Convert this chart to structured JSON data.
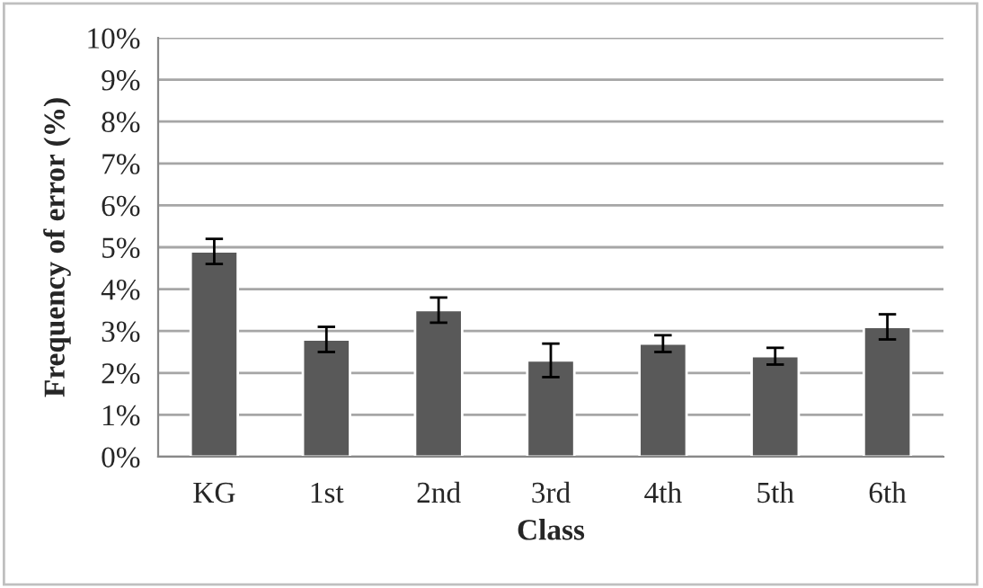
{
  "chart_data": {
    "type": "bar",
    "xlabel": "Class",
    "ylabel": "Frequency of error (%)",
    "categories": [
      "KG",
      "1st",
      "2nd",
      "3rd",
      "4th",
      "5th",
      "6th"
    ],
    "values": [
      4.9,
      2.8,
      3.5,
      2.3,
      2.7,
      2.4,
      3.1
    ],
    "errors": [
      0.3,
      0.3,
      0.3,
      0.4,
      0.2,
      0.2,
      0.3
    ],
    "color": "#595959",
    "ylim": [
      0,
      10
    ],
    "yticks": [
      {
        "value": 0,
        "label": "0%"
      },
      {
        "value": 1,
        "label": "1%"
      },
      {
        "value": 2,
        "label": "2%"
      },
      {
        "value": 3,
        "label": "3%"
      },
      {
        "value": 4,
        "label": "4%"
      },
      {
        "value": 5,
        "label": "5%"
      },
      {
        "value": 6,
        "label": "6%"
      },
      {
        "value": 7,
        "label": "7%"
      },
      {
        "value": 8,
        "label": "8%"
      },
      {
        "value": 9,
        "label": "9%"
      },
      {
        "value": 10,
        "label": "10%"
      }
    ],
    "grid": "y",
    "legend": false
  }
}
